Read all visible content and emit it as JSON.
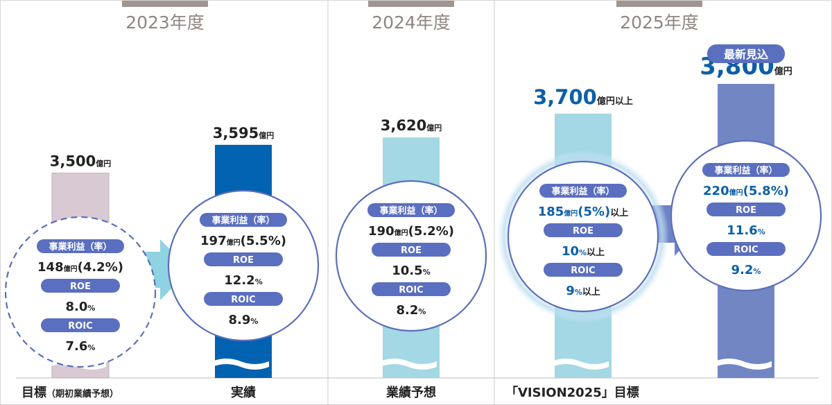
{
  "colors": {
    "year_tab": "#a09590",
    "year_text": "#8f8580",
    "bar_target_2023": "#d8c9d3",
    "bar_actual_2023": "#0062b0",
    "bar_forecast_2024": "#a3d8e4",
    "bar_target_2025": "#a3d8e4",
    "bar_latest_2025": "#7286c4",
    "pill": "#5b6fc0",
    "circle_stroke": "#5a6fba",
    "value_dark": "#222222",
    "value_blue": "#0c5fa8",
    "arrow_light": "#8fd2e2",
    "arrow_dark": "#6f84c6"
  },
  "chart_data": {
    "type": "bar",
    "title": "",
    "unit": "億円",
    "years": [
      "2023年度",
      "2024年度",
      "2025年度"
    ],
    "categories": [
      "目標（期初業績予想）",
      "実績",
      "業績予想",
      "「VISION2025」目標",
      "最新見込"
    ],
    "values": [
      3500,
      3595,
      3620,
      3700,
      3800
    ],
    "axis_break": true,
    "bars": [
      {
        "year": "2023年度",
        "category": "目標",
        "category_sub": "（期初業績予想）",
        "value": 3500,
        "value_text": "3,500",
        "unit_text": "億円",
        "suffix": "",
        "badge": "",
        "circle": {
          "profit_label": "事業利益（率）",
          "profit_value": "148",
          "profit_unit": "億円",
          "profit_rate": "(4.2%)",
          "profit_suffix": "",
          "roe_label": "ROE",
          "roe_value": "8.0",
          "roe_unit": "%",
          "roe_suffix": "",
          "roic_label": "ROIC",
          "roic_value": "7.6",
          "roic_unit": "%",
          "roic_suffix": ""
        }
      },
      {
        "year": "2023年度",
        "category": "実績",
        "category_sub": "",
        "value": 3595,
        "value_text": "3,595",
        "unit_text": "億円",
        "suffix": "",
        "badge": "",
        "circle": {
          "profit_label": "事業利益（率）",
          "profit_value": "197",
          "profit_unit": "億円",
          "profit_rate": "(5.5%)",
          "profit_suffix": "",
          "roe_label": "ROE",
          "roe_value": "12.2",
          "roe_unit": "%",
          "roe_suffix": "",
          "roic_label": "ROIC",
          "roic_value": "8.9",
          "roic_unit": "%",
          "roic_suffix": ""
        }
      },
      {
        "year": "2024年度",
        "category": "業績予想",
        "category_sub": "",
        "value": 3620,
        "value_text": "3,620",
        "unit_text": "億円",
        "suffix": "",
        "badge": "",
        "circle": {
          "profit_label": "事業利益（率）",
          "profit_value": "190",
          "profit_unit": "億円",
          "profit_rate": "(5.2%)",
          "profit_suffix": "",
          "roe_label": "ROE",
          "roe_value": "10.5",
          "roe_unit": "%",
          "roe_suffix": "",
          "roic_label": "ROIC",
          "roic_value": "8.2",
          "roic_unit": "%",
          "roic_suffix": ""
        }
      },
      {
        "year": "2025年度",
        "category": "「VISION2025」目標",
        "category_sub": "",
        "value": 3700,
        "value_text": "3,700",
        "unit_text": "億円",
        "suffix": "以上",
        "badge": "",
        "circle": {
          "profit_label": "事業利益（率）",
          "profit_value": "185",
          "profit_unit": "億円",
          "profit_rate": "(5%)",
          "profit_suffix": "以上",
          "roe_label": "ROE",
          "roe_value": "10",
          "roe_unit": "%",
          "roe_suffix": "以上",
          "roic_label": "ROIC",
          "roic_value": "9",
          "roic_unit": "%",
          "roic_suffix": "以上"
        }
      },
      {
        "year": "2025年度",
        "category": "",
        "category_sub": "",
        "value": 3800,
        "value_text": "3,800",
        "unit_text": "億円",
        "suffix": "",
        "badge": "最新見込",
        "circle": {
          "profit_label": "事業利益（率）",
          "profit_value": "220",
          "profit_unit": "億円",
          "profit_rate": "(5.8%)",
          "profit_suffix": "",
          "roe_label": "ROE",
          "roe_value": "11.6",
          "roe_unit": "%",
          "roe_suffix": "",
          "roic_label": "ROIC",
          "roic_value": "9.2",
          "roic_unit": "%",
          "roic_suffix": ""
        }
      }
    ]
  }
}
